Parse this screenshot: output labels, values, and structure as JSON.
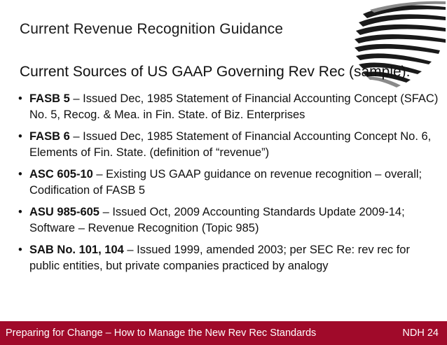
{
  "slide": {
    "title": "Current Revenue Recognition Guidance",
    "subtitle": "Current Sources of US GAAP Governing Rev Rec (sample):",
    "logo_icon": "spiral-fan-logo-icon"
  },
  "bullets": [
    {
      "bold": "FASB 5",
      "text": " – Issued Dec, 1985 Statement of Financial Accounting Concept (SFAC) No. 5, Recog. & Mea. in Fin. State. of Biz. Enterprises"
    },
    {
      "bold": "FASB 6",
      "text": " – Issued Dec, 1985 Statement of Financial Accounting Concept No. 6, Elements of Fin. State. (definition of “revenue”)"
    },
    {
      "bold": "ASC 605-10",
      "text": " – Existing US GAAP guidance on revenue recognition – overall; Codification of FASB 5"
    },
    {
      "bold": "ASU 985-605",
      "text": " – Issued Oct, 2009 Accounting Standards Update 2009-14; Software – Revenue Recognition (Topic 985)"
    },
    {
      "bold": "SAB No. 101, 104",
      "text": " – Issued 1999, amended 2003; per SEC Re: rev rec for public entities, but private companies practiced by analogy"
    }
  ],
  "footer": {
    "left": "Preparing for Change – How to Manage the New Rev Rec Standards",
    "right": "NDH  24",
    "bg_color": "#a00a2a"
  }
}
